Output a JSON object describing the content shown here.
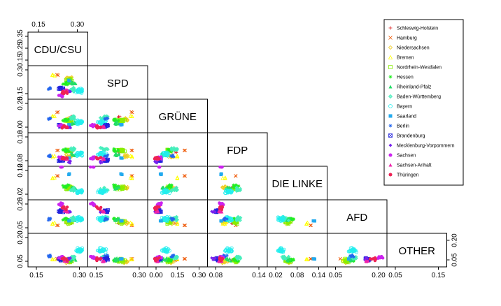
{
  "chart_data": {
    "type": "scatter",
    "variables": [
      {
        "name": "CDU/CSU",
        "range": [
          0.08,
          0.42
        ]
      },
      {
        "name": "SPD",
        "range": [
          0.08,
          0.42
        ]
      },
      {
        "name": "GRÜNE",
        "range": [
          0.0,
          0.32
        ]
      },
      {
        "name": "FDP",
        "range": [
          0.05,
          0.2
        ]
      },
      {
        "name": "DIE LINKE",
        "range": [
          0.0,
          0.15
        ]
      },
      {
        "name": "AFD",
        "range": [
          0.0,
          0.29
        ]
      },
      {
        "name": "OTHER",
        "range": [
          0.02,
          0.22
        ]
      }
    ],
    "axis_ticks": {
      "top": [
        {
          "var": 0,
          "values": [
            "0.15",
            "0.30"
          ]
        }
      ],
      "left": [
        {
          "var": 0,
          "values": [
            "0.15",
            "0.25",
            "0.35"
          ]
        },
        {
          "var": 1,
          "values": [
            "0.15",
            "0.30"
          ]
        },
        {
          "var": 2,
          "values": [
            "0.00",
            "0.25"
          ]
        },
        {
          "var": 3,
          "values": [
            "0.08",
            "0.18"
          ]
        },
        {
          "var": 4,
          "values": [
            "0.02",
            "0.12"
          ]
        },
        {
          "var": 5,
          "values": [
            "0.05",
            "0.25"
          ]
        },
        {
          "var": 6,
          "values": [
            "0.05",
            "0.20"
          ]
        }
      ],
      "bottom": [
        {
          "var": 0,
          "values": [
            "0.15",
            "0.30"
          ]
        },
        {
          "var": 1,
          "values": [
            "0.15",
            "0.30"
          ]
        },
        {
          "var": 2,
          "values": [
            "0.00",
            "0.15",
            "0.30"
          ]
        },
        {
          "var": 3,
          "values": [
            "0.08",
            "0.14"
          ]
        },
        {
          "var": 4,
          "values": [
            "0.02",
            "0.08",
            "0.14"
          ]
        },
        {
          "var": 5,
          "values": [
            "0.05",
            "0.20"
          ]
        },
        {
          "var": 6,
          "values": [
            "0.05",
            "0.15"
          ]
        }
      ],
      "right": [
        {
          "var": 6,
          "values": [
            "0.05",
            "0.20"
          ]
        }
      ]
    },
    "series": [
      {
        "name": "Schleswig-Holstein",
        "color": "#dd2222",
        "symbol": "plus",
        "centroid": [
          0.33,
          0.26,
          0.15,
          0.11,
          0.05,
          0.08,
          0.05
        ],
        "spread": 0.15,
        "n": 3
      },
      {
        "name": "Hamburg",
        "color": "#ee5500",
        "symbol": "cross",
        "centroid": [
          0.25,
          0.33,
          0.2,
          0.12,
          0.11,
          0.06,
          0.06
        ],
        "spread": 0.15,
        "n": 2
      },
      {
        "name": "Niedersachsen",
        "color": "#eecc22",
        "symbol": "diamond",
        "centroid": [
          0.32,
          0.3,
          0.12,
          0.09,
          0.05,
          0.09,
          0.04
        ],
        "spread": 0.35,
        "n": 12
      },
      {
        "name": "Bremen",
        "color": "#ffff00",
        "symbol": "triangle",
        "centroid": [
          0.22,
          0.33,
          0.16,
          0.09,
          0.1,
          0.08,
          0.06
        ],
        "spread": 0.2,
        "n": 3
      },
      {
        "name": "Nordrhein-Westfalen",
        "color": "#88ee00",
        "symbol": "square",
        "centroid": [
          0.32,
          0.27,
          0.11,
          0.12,
          0.05,
          0.09,
          0.05
        ],
        "spread": 0.35,
        "n": 16
      },
      {
        "name": "Hessen",
        "color": "#22ee22",
        "symbol": "star",
        "centroid": [
          0.3,
          0.24,
          0.12,
          0.12,
          0.06,
          0.12,
          0.05
        ],
        "spread": 0.35,
        "n": 10
      },
      {
        "name": "Rheinland-Pfalz",
        "color": "#22dd66",
        "symbol": "triangle-filled",
        "centroid": [
          0.35,
          0.24,
          0.08,
          0.1,
          0.05,
          0.11,
          0.06
        ],
        "spread": 0.35,
        "n": 10
      },
      {
        "name": "Baden-Württemberg",
        "color": "#44eebb",
        "symbol": "diamond-plus",
        "centroid": [
          0.34,
          0.17,
          0.14,
          0.13,
          0.04,
          0.12,
          0.07
        ],
        "spread": 0.4,
        "n": 14
      },
      {
        "name": "Bayern",
        "color": "#22eeee",
        "symbol": "circle",
        "centroid": [
          0.38,
          0.15,
          0.09,
          0.1,
          0.03,
          0.12,
          0.12
        ],
        "spread": 0.45,
        "n": 26
      },
      {
        "name": "Saarland",
        "color": "#22aaee",
        "symbol": "square-filled",
        "centroid": [
          0.32,
          0.27,
          0.06,
          0.08,
          0.12,
          0.1,
          0.06
        ],
        "spread": 0.15,
        "n": 3
      },
      {
        "name": "Berlin",
        "color": "#2266ee",
        "symbol": "star",
        "centroid": [
          0.2,
          0.18,
          0.13,
          0.09,
          0.18,
          0.12,
          0.08
        ],
        "spread": 0.25,
        "n": 6
      },
      {
        "name": "Brandenburg",
        "color": "#2222dd",
        "symbol": "square-x",
        "centroid": [
          0.27,
          0.18,
          0.05,
          0.07,
          0.18,
          0.2,
          0.06
        ],
        "spread": 0.3,
        "n": 8
      },
      {
        "name": "Mecklenburg-Vorpommern",
        "color": "#7722ee",
        "symbol": "diamond-filled",
        "centroid": [
          0.32,
          0.15,
          0.04,
          0.06,
          0.17,
          0.19,
          0.06
        ],
        "spread": 0.3,
        "n": 6
      },
      {
        "name": "Sachsen",
        "color": "#cc22ee",
        "symbol": "circle-filled",
        "centroid": [
          0.27,
          0.1,
          0.05,
          0.08,
          0.16,
          0.27,
          0.07
        ],
        "spread": 0.3,
        "n": 10
      },
      {
        "name": "Sachsen-Anhalt",
        "color": "#ee22aa",
        "symbol": "triangle-filled",
        "centroid": [
          0.3,
          0.16,
          0.04,
          0.08,
          0.18,
          0.2,
          0.05
        ],
        "spread": 0.3,
        "n": 7
      },
      {
        "name": "Thüringen",
        "color": "#ee2255",
        "symbol": "circle-filled",
        "centroid": [
          0.29,
          0.13,
          0.04,
          0.08,
          0.17,
          0.23,
          0.06
        ],
        "spread": 0.3,
        "n": 7
      }
    ],
    "legend_position": "top-right"
  }
}
